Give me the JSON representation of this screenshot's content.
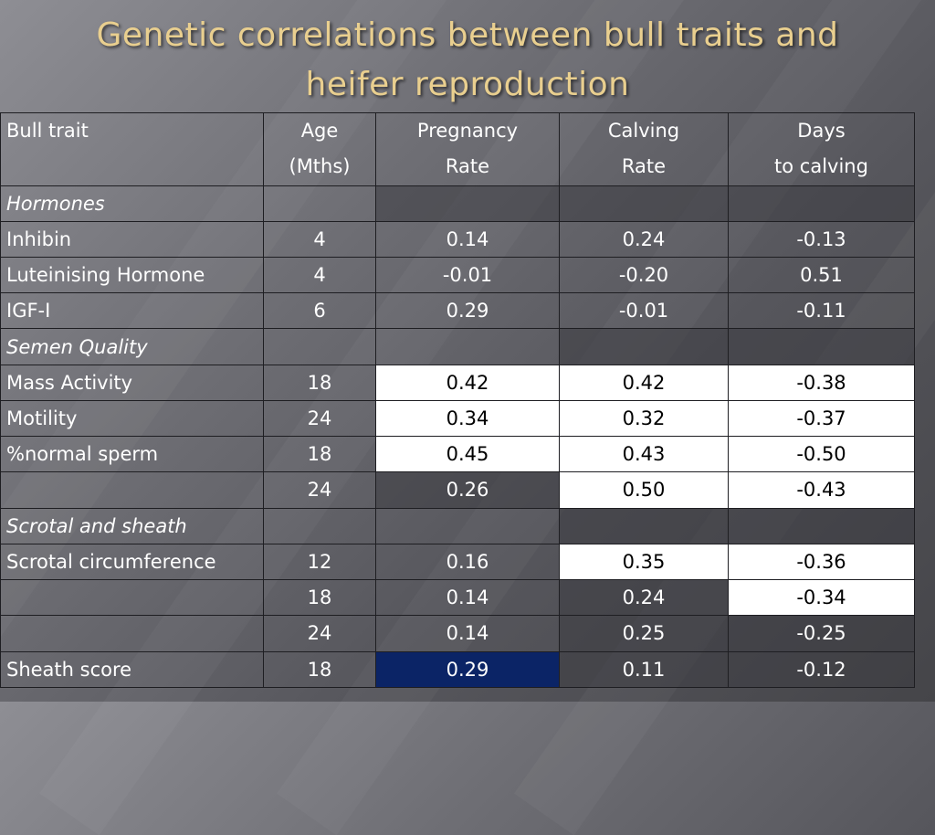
{
  "title_line1": "Genetic correlations between bull traits and",
  "title_line2": "heifer reproduction",
  "headers": {
    "trait": "Bull trait",
    "age_1": "Age",
    "age_2": "(Mths)",
    "preg_1": "Pregnancy",
    "preg_2": "Rate",
    "calv_1": "Calving",
    "calv_2": "Rate",
    "days_1": "Days",
    "days_2": "to calving"
  },
  "rows": [
    {
      "trait": "Hormones",
      "age": "",
      "preg": "",
      "calv": "",
      "days": ""
    },
    {
      "trait": "Inhibin",
      "age": "4",
      "preg": "0.14",
      "calv": "0.24",
      "days": "-0.13"
    },
    {
      "trait": "Luteinising Hormone",
      "age": "4",
      "preg": "-0.01",
      "calv": "-0.20",
      "days": "0.51"
    },
    {
      "trait": "IGF-I",
      "age": "6",
      "preg": "0.29",
      "calv": "-0.01",
      "days": "-0.11"
    },
    {
      "trait": "Semen Quality",
      "age": "",
      "preg": "",
      "calv": "",
      "days": ""
    },
    {
      "trait": "Mass Activity",
      "age": "18",
      "preg": "0.42",
      "calv": "0.42",
      "days": "-0.38"
    },
    {
      "trait": "Motility",
      "age": "24",
      "preg": "0.34",
      "calv": "0.32",
      "days": "-0.37"
    },
    {
      "trait": "%normal sperm",
      "age": "18",
      "preg": "0.45",
      "calv": "0.43",
      "days": "-0.50"
    },
    {
      "trait": "",
      "age": "24",
      "preg": "0.26",
      "calv": "0.50",
      "days": "-0.43"
    },
    {
      "trait": "Scrotal and sheath",
      "age": "",
      "preg": "",
      "calv": "",
      "days": ""
    },
    {
      "trait": "Scrotal circumference",
      "age": "12",
      "preg": "0.16",
      "calv": "0.35",
      "days": "-0.36"
    },
    {
      "trait": "",
      "age": "18",
      "preg": "0.14",
      "calv": "0.24",
      "days": "-0.34"
    },
    {
      "trait": "",
      "age": "24",
      "preg": "0.14",
      "calv": "0.25",
      "days": "-0.25"
    },
    {
      "trait": "Sheath score",
      "age": "18",
      "preg": "0.29",
      "calv": "0.11",
      "days": "-0.12"
    }
  ],
  "colors": {
    "title": "#e9cf8f",
    "highlight_white": "#ffffff",
    "highlight_navy": "#0b2466"
  }
}
